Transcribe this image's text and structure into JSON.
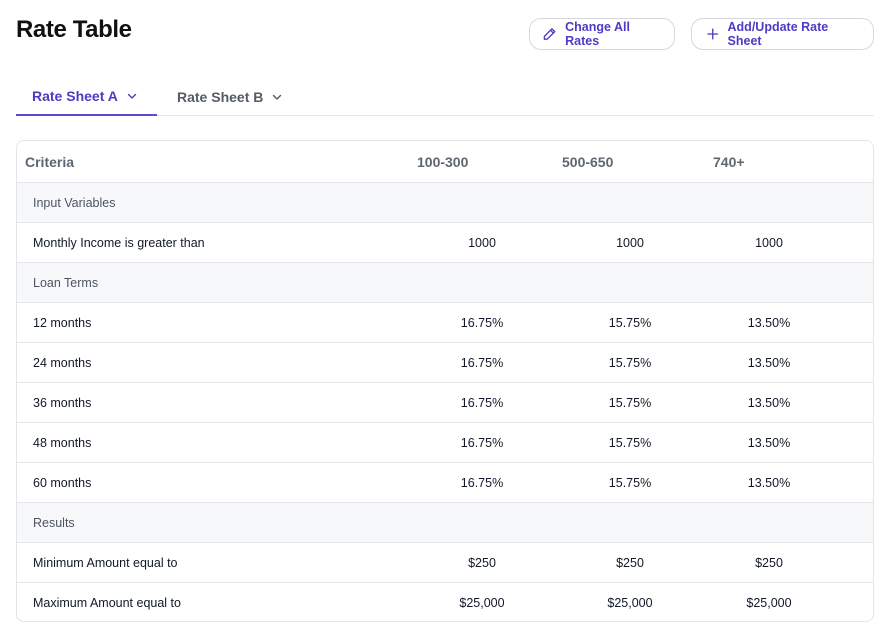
{
  "page_title": "Rate Table",
  "toolbar": {
    "change_all_rates": "Change All Rates",
    "add_update_rate_sheet": "Add/Update Rate Sheet"
  },
  "tabs": [
    {
      "label": "Rate Sheet A",
      "active": true
    },
    {
      "label": "Rate Sheet B",
      "active": false
    }
  ],
  "colors": {
    "accent": "#4c3bc4",
    "section_bg": "#f7f8fa",
    "border": "#e5e7eb"
  },
  "table": {
    "headers": [
      "Criteria",
      "100-300",
      "500-650",
      "740+"
    ],
    "sections": [
      {
        "label": "Input Variables",
        "rows": [
          {
            "label": "Monthly Income is greater than",
            "values": [
              "1000",
              "1000",
              "1000"
            ]
          }
        ]
      },
      {
        "label": "Loan Terms",
        "rows": [
          {
            "label": "12 months",
            "values": [
              "16.75%",
              "15.75%",
              "13.50%"
            ]
          },
          {
            "label": "24 months",
            "values": [
              "16.75%",
              "15.75%",
              "13.50%"
            ]
          },
          {
            "label": "36 months",
            "values": [
              "16.75%",
              "15.75%",
              "13.50%"
            ]
          },
          {
            "label": "48 months",
            "values": [
              "16.75%",
              "15.75%",
              "13.50%"
            ]
          },
          {
            "label": "60 months",
            "values": [
              "16.75%",
              "15.75%",
              "13.50%"
            ]
          }
        ]
      },
      {
        "label": "Results",
        "rows": [
          {
            "label": "Minimum Amount equal to",
            "values": [
              "$250",
              "$250",
              "$250"
            ]
          },
          {
            "label": "Maximum Amount equal to",
            "values": [
              "$25,000",
              "$25,000",
              "$25,000"
            ]
          }
        ]
      }
    ]
  }
}
